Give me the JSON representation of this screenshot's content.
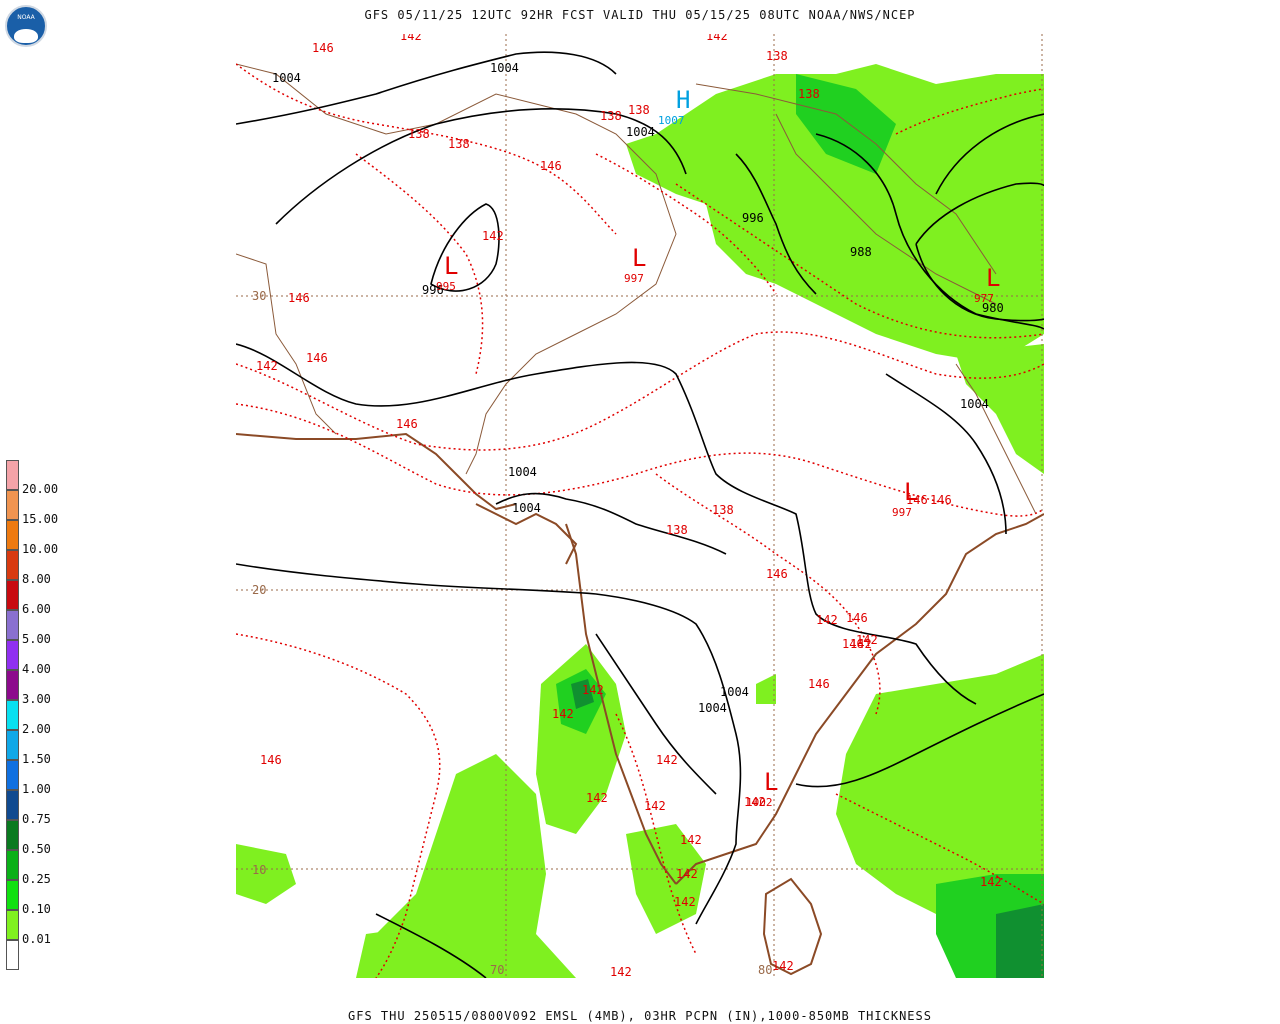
{
  "header": {
    "title": "GFS 05/11/25 12UTC 92HR FCST VALID THU 05/15/25 08UTC NOAA/NWS/NCEP"
  },
  "footer": {
    "caption": "GFS THU 250515/0800V092 EMSL (4MB), 03HR PCPN (IN),1000-850MB THICKNESS"
  },
  "logo": {
    "text": "NOAA"
  },
  "legend": {
    "items": [
      {
        "label": "20.00",
        "color": "#f4a3a8"
      },
      {
        "label": "15.00",
        "color": "#f09450"
      },
      {
        "label": "10.00",
        "color": "#ee7a10"
      },
      {
        "label": "8.00",
        "color": "#d83a10"
      },
      {
        "label": "6.00",
        "color": "#c80a10"
      },
      {
        "label": "5.00",
        "color": "#8a70d0"
      },
      {
        "label": "4.00",
        "color": "#9030f0"
      },
      {
        "label": "3.00",
        "color": "#8c0a8c"
      },
      {
        "label": "2.00",
        "color": "#08e0f0"
      },
      {
        "label": "1.50",
        "color": "#10a8e8"
      },
      {
        "label": "1.00",
        "color": "#1070e0"
      },
      {
        "label": "0.75",
        "color": "#104a90"
      },
      {
        "label": "0.50",
        "color": "#0a7a20"
      },
      {
        "label": "0.25",
        "color": "#0ab018"
      },
      {
        "label": "0.10",
        "color": "#10e010"
      },
      {
        "label": "0.01",
        "color": "#80f020"
      },
      {
        "label": "",
        "color": "#ffffff"
      }
    ]
  },
  "colors": {
    "isobar": "#000000",
    "thickness": "#e00000",
    "coast": "#8b4a26",
    "border": "#8b5a3a",
    "grid": "#9a6a4a",
    "high": "#00a0e0",
    "precip_light": "#7ff020",
    "precip_mid": "#20d020",
    "precip_dark": "#109030"
  },
  "map": {
    "lat_labels": [
      "30",
      "20",
      "10"
    ],
    "lon_labels": [
      "70",
      "80"
    ],
    "pressure_labels": [
      "1004",
      "1004",
      "1004",
      "1004",
      "1004",
      "1004",
      "1004",
      "1004",
      "996",
      "996",
      "988",
      "980"
    ],
    "thickness_labels": [
      "146",
      "142",
      "142",
      "138",
      "138",
      "138",
      "138",
      "146",
      "142",
      "138",
      "138",
      "146",
      "146",
      "142",
      "146",
      "138",
      "138",
      "146",
      "146",
      "146",
      "146",
      "146",
      "146",
      "146",
      "142",
      "142",
      "142",
      "142",
      "142",
      "142",
      "142",
      "142",
      "142",
      "142",
      "142",
      "142",
      "142",
      "142",
      "142"
    ],
    "low_centers": [
      {
        "symbol": "L",
        "value": "995"
      },
      {
        "symbol": "L",
        "value": "997"
      },
      {
        "symbol": "L",
        "value": "977"
      },
      {
        "symbol": "L",
        "value": "997"
      },
      {
        "symbol": "L",
        "value": "1002"
      }
    ],
    "high_centers": [
      {
        "symbol": "H",
        "value": "1007"
      }
    ]
  }
}
